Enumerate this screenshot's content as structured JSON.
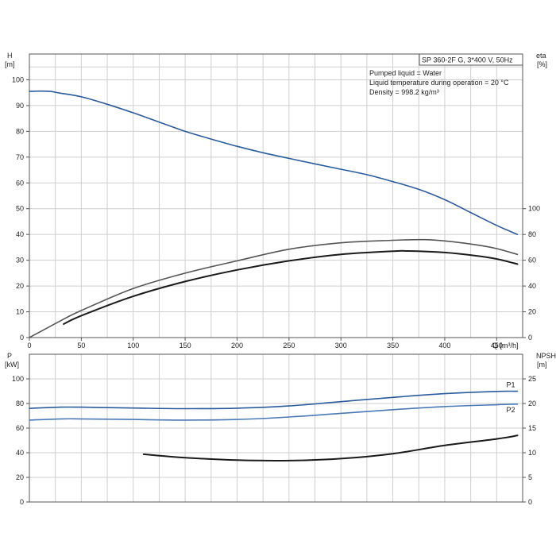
{
  "chart_data": [
    {
      "type": "line",
      "x_axis": {
        "label": "Q [m³/h]",
        "range": [
          0,
          475
        ],
        "ticks": [
          0,
          50,
          100,
          150,
          200,
          250,
          300,
          350,
          400,
          450
        ]
      },
      "left_axis": {
        "label_top": "H",
        "label_unit": "[m]",
        "range": [
          0,
          110
        ],
        "ticks": [
          0,
          10,
          20,
          30,
          40,
          50,
          60,
          70,
          80,
          90,
          100
        ]
      },
      "right_axis": {
        "label_top": "eta",
        "label_unit": "[%]",
        "range": [
          0,
          110
        ],
        "ticks": [
          0,
          20,
          40,
          60,
          80,
          100
        ],
        "scale_factor": 0.5
      },
      "info_box": "SP 360-2F G, 3*400 V, 50Hz",
      "info_lines": [
        "Pumped liquid = Water",
        "Liquid temperature during operation = 20 °C",
        "Density = 998.2 kg/m³"
      ],
      "grid": true,
      "series": [
        {
          "axis": "left",
          "color": "#2a5b9b",
          "x": [
            0,
            10,
            20,
            30,
            50,
            75,
            100,
            125,
            150,
            175,
            200,
            225,
            250,
            275,
            300,
            325,
            350,
            375,
            400,
            425,
            450,
            470
          ],
          "y": [
            95.5,
            95.6,
            95.5,
            94.8,
            93.4,
            90.5,
            87.2,
            83.6,
            80.0,
            77.0,
            74.2,
            71.7,
            69.5,
            67.4,
            65.3,
            63.2,
            60.5,
            57.5,
            53.5,
            48.5,
            43.5,
            40
          ]
        },
        {
          "axis": "right",
          "color": "#555555",
          "x": [
            0,
            30,
            50,
            100,
            150,
            200,
            250,
            300,
            350,
            380,
            400,
            430,
            450,
            470
          ],
          "y": [
            0,
            13,
            21,
            38,
            50,
            59.5,
            68.5,
            73.5,
            75.5,
            76,
            75,
            72,
            69,
            64.5
          ]
        },
        {
          "axis": "right",
          "color": "#1a1a1a",
          "x": [
            33,
            50,
            100,
            150,
            200,
            250,
            300,
            350,
            365,
            400,
            430,
            450,
            470
          ],
          "y": [
            10.5,
            17,
            32,
            43.5,
            52.5,
            59.5,
            64.5,
            67,
            67.2,
            66,
            63.5,
            61,
            57
          ]
        }
      ]
    },
    {
      "type": "line",
      "x_axis": {
        "range": [
          0,
          475
        ]
      },
      "left_axis": {
        "label_top": "P",
        "label_unit": "[kW]",
        "range": [
          0,
          120
        ],
        "ticks": [
          0,
          20,
          40,
          60,
          80,
          100
        ]
      },
      "right_axis": {
        "label_top": "NPSH",
        "label_unit": "[m]",
        "range": [
          0,
          30
        ],
        "ticks": [
          0,
          5,
          10,
          15,
          20,
          25
        ]
      },
      "grid": true,
      "series": [
        {
          "name": "P1",
          "axis": "left",
          "color": "#2a5b9b",
          "x": [
            0,
            30,
            50,
            100,
            150,
            200,
            250,
            300,
            350,
            400,
            450,
            470
          ],
          "y": [
            76,
            77,
            77,
            76.3,
            75.8,
            76.2,
            78,
            81.5,
            85,
            88,
            89.8,
            90
          ]
        },
        {
          "name": "P2",
          "axis": "left",
          "color": "#4a78b5",
          "x": [
            0,
            30,
            50,
            100,
            150,
            200,
            250,
            300,
            350,
            400,
            450,
            470
          ],
          "y": [
            66.5,
            67.5,
            67.5,
            67,
            66.5,
            67,
            69,
            72,
            75,
            77.5,
            79,
            79.5
          ]
        },
        {
          "axis": "right",
          "color": "#1a1a1a",
          "x": [
            110,
            150,
            200,
            250,
            300,
            350,
            400,
            450,
            470
          ],
          "y": [
            9.7,
            9.0,
            8.5,
            8.4,
            8.8,
            9.8,
            11.5,
            12.8,
            13.5
          ]
        }
      ]
    }
  ]
}
